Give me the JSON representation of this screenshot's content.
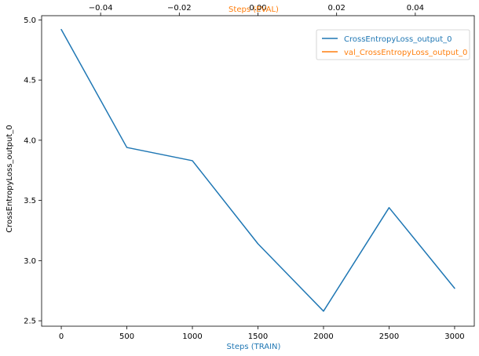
{
  "chart_data": {
    "type": "line",
    "xlabel_bottom": "Steps (TRAIN)",
    "xlabel_top": "Steps (EVAL)",
    "ylabel": "CrossEntropyLoss_output_0",
    "grid": false,
    "legend_position": "top-right",
    "bottom_axis": {
      "range": [
        -150,
        3150
      ],
      "ticks": [
        0,
        500,
        1000,
        1500,
        2000,
        2500,
        3000
      ],
      "tick_labels": [
        "0",
        "500",
        "1000",
        "1500",
        "2000",
        "2500",
        "3000"
      ]
    },
    "top_axis": {
      "range": [
        -0.055,
        0.055
      ],
      "ticks": [
        -0.04,
        -0.02,
        0.0,
        0.02,
        0.04
      ],
      "tick_labels": [
        "−0.04",
        "−0.02",
        "0.00",
        "0.02",
        "0.04"
      ]
    },
    "y_axis": {
      "range": [
        2.455,
        5.035
      ],
      "ticks": [
        2.5,
        3.0,
        3.5,
        4.0,
        4.5,
        5.0
      ],
      "tick_labels": [
        "2.5",
        "3.0",
        "3.5",
        "4.0",
        "4.5",
        "5.0"
      ]
    },
    "series": [
      {
        "name": "CrossEntropyLoss_output_0",
        "color": "#1f77b4",
        "axis": "bottom",
        "x": [
          0,
          500,
          1000,
          1500,
          2000,
          2500,
          3000
        ],
        "y": [
          4.92,
          3.94,
          3.83,
          3.14,
          2.58,
          3.44,
          2.77
        ]
      },
      {
        "name": "val_CrossEntropyLoss_output_0",
        "color": "#ff7f0e",
        "axis": "top",
        "x": [],
        "y": []
      }
    ]
  },
  "colors": {
    "train_axis_label": "#1f77b4",
    "eval_axis_label": "#ff7f0e",
    "axes": "#000000",
    "legend_border": "#cccccc"
  }
}
